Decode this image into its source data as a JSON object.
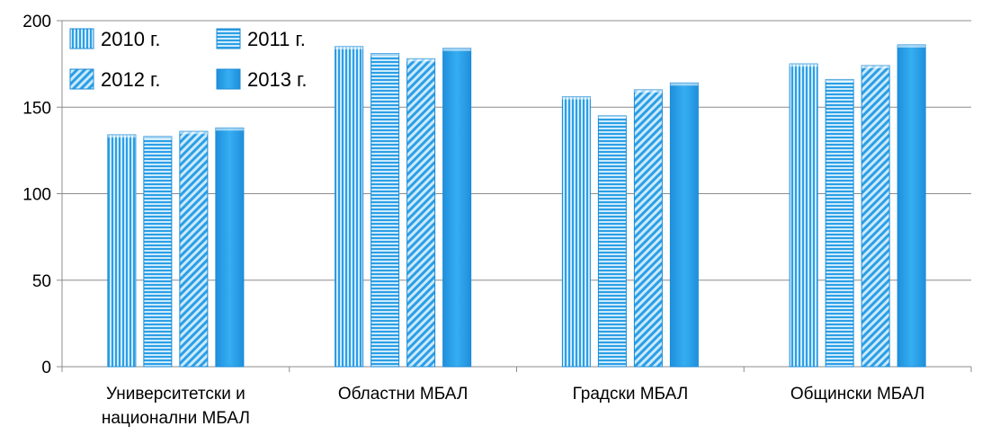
{
  "chart_data": {
    "type": "bar",
    "title": "",
    "xlabel": "",
    "ylabel": "",
    "ylim": [
      0,
      200
    ],
    "yticks": [
      0,
      50,
      100,
      150,
      200
    ],
    "grid": true,
    "legend_position": "top-left",
    "categories": [
      [
        "Университетски и",
        "национални МБАЛ"
      ],
      [
        "Областни МБАЛ"
      ],
      [
        "Градски МБАЛ"
      ],
      [
        "Общински МБАЛ"
      ]
    ],
    "series": [
      {
        "name": "2010 г.",
        "pattern": "vertical-stripes",
        "values": [
          134,
          185,
          156,
          175
        ]
      },
      {
        "name": "2011 г.",
        "pattern": "horizontal-stripes",
        "values": [
          133,
          181,
          145,
          166
        ]
      },
      {
        "name": "2012 г.",
        "pattern": "diagonal-stripes",
        "values": [
          136,
          178,
          160,
          174
        ]
      },
      {
        "name": "2013 г.",
        "pattern": "solid",
        "values": [
          138,
          184,
          164,
          186
        ]
      }
    ],
    "colors": {
      "bar": "#2b9fe6",
      "bar_light": "#cdeafb",
      "axis": "#8c8c8c",
      "grid": "#8c8c8c"
    }
  }
}
